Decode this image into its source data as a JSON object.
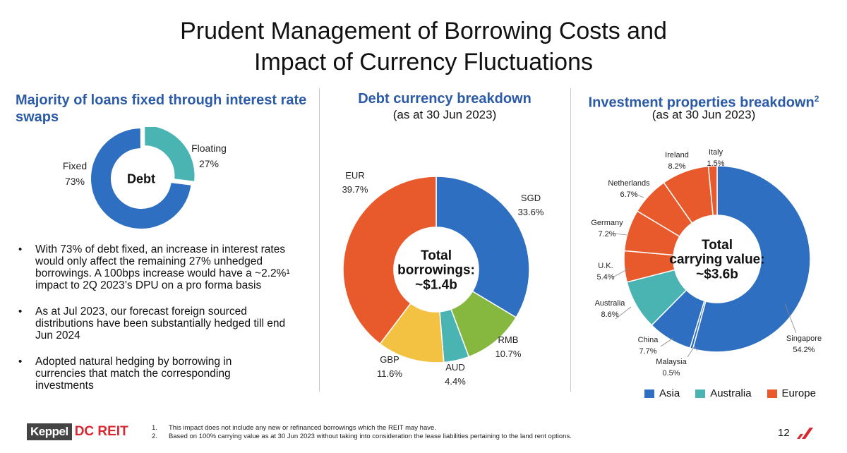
{
  "title_line1": "Prudent Management of Borrowing Costs and",
  "title_line2": "Impact of Currency Fluctuations",
  "left": {
    "heading_line1": "Majority of loans fixed through interest rate",
    "heading_line2": "swaps",
    "bullets": [
      {
        "lines": [
          "With 73% of debt fixed, an increase in interest rates",
          "would only affect the remaining 27% unhedged",
          "borrowings. A 100bps increase would have a ~2.2%¹",
          "impact to 2Q 2023’s DPU on a pro forma basis"
        ]
      },
      {
        "lines": [
          "As at Jul 2023, our forecast foreign sourced",
          "distributions have been substantially hedged till end",
          "Jun 2024"
        ]
      },
      {
        "lines": [
          "Adopted natural hedging by borrowing in",
          "currencies that match the corresponding",
          "investments"
        ]
      }
    ]
  },
  "middle": {
    "heading": "Debt currency breakdown",
    "sub": "(as at 30 Jun 2023)"
  },
  "right": {
    "heading": "Investment properties breakdown",
    "heading_sup": "2",
    "sub": "(as at 30 Jun 2023)"
  },
  "colors": {
    "blue": "#2f6fc1",
    "teal": "#4ab4b3",
    "orange": "#e85a2c",
    "green": "#86b73e",
    "yellow": "#f4c242",
    "title_blue": "#2b5aa6"
  },
  "legend": [
    {
      "label": "Asia",
      "color": "#2f6fc1"
    },
    {
      "label": "Australia",
      "color": "#4ab4b3"
    },
    {
      "label": "Europe",
      "color": "#e85a2c"
    }
  ],
  "footer": {
    "logo_keppel": "Keppel",
    "logo_dcreit": "DC REIT",
    "notes": [
      {
        "num": "1.",
        "text": "This impact does not include any new or refinanced borrowings which the REIT may have."
      },
      {
        "num": "2.",
        "text": "Based on 100% carrying value as at 30 Jun 2023 without taking into consideration the lease liabilities pertaining to the land rent options."
      }
    ],
    "page": "12"
  },
  "chart_data": [
    {
      "type": "pie",
      "variant": "donut",
      "center_label": "Debt",
      "slices": [
        {
          "label": "Fixed",
          "value": 73,
          "display": "73%",
          "color": "#2f6fc1"
        },
        {
          "label": "Floating",
          "value": 27,
          "display": "27%",
          "color": "#4ab4b3",
          "exploded": true
        }
      ]
    },
    {
      "type": "pie",
      "variant": "donut",
      "center_label": [
        "Total",
        "borrowings:",
        "~$1.4b"
      ],
      "slices": [
        {
          "label": "SGD",
          "value": 33.6,
          "display": "33.6%",
          "color": "#2f6fc1"
        },
        {
          "label": "RMB",
          "value": 10.7,
          "display": "10.7%",
          "color": "#86b73e"
        },
        {
          "label": "AUD",
          "value": 4.4,
          "display": "4.4%",
          "color": "#4ab4b3"
        },
        {
          "label": "GBP",
          "value": 11.6,
          "display": "11.6%",
          "color": "#f4c242"
        },
        {
          "label": "EUR",
          "value": 39.7,
          "display": "39.7%",
          "color": "#e85a2c"
        }
      ]
    },
    {
      "type": "pie",
      "variant": "donut",
      "center_label": [
        "Total",
        "carrying value:",
        "~$3.6b"
      ],
      "slices": [
        {
          "label": "Singapore",
          "value": 54.2,
          "display": "54.2%",
          "color": "#2f6fc1",
          "group": "Asia"
        },
        {
          "label": "Malaysia",
          "value": 0.5,
          "display": "0.5%",
          "color": "#2f6fc1",
          "group": "Asia"
        },
        {
          "label": "China",
          "value": 7.7,
          "display": "7.7%",
          "color": "#2f6fc1",
          "group": "Asia"
        },
        {
          "label": "Australia",
          "value": 8.6,
          "display": "8.6%",
          "color": "#4ab4b3",
          "group": "Australia"
        },
        {
          "label": "U.K.",
          "value": 5.4,
          "display": "5.4%",
          "color": "#e85a2c",
          "group": "Europe"
        },
        {
          "label": "Germany",
          "value": 7.2,
          "display": "7.2%",
          "color": "#e85a2c",
          "group": "Europe"
        },
        {
          "label": "Netherlands",
          "value": 6.7,
          "display": "6.7%",
          "color": "#e85a2c",
          "group": "Europe"
        },
        {
          "label": "Ireland",
          "value": 8.2,
          "display": "8.2%",
          "color": "#e85a2c",
          "group": "Europe"
        },
        {
          "label": "Italy",
          "value": 1.5,
          "display": "1.5%",
          "color": "#e85a2c",
          "group": "Europe"
        }
      ]
    }
  ]
}
